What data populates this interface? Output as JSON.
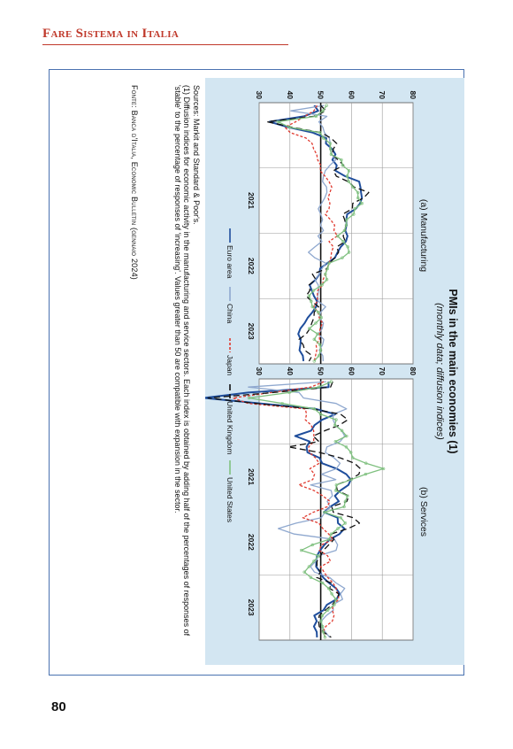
{
  "header": {
    "title": "Fare Sistema in Italia"
  },
  "page_number": "80",
  "figure": {
    "sources": "Sources: Markit and Standard & Poor's.",
    "note_line1": "(1) Diffusion indices for economic activity in the manufacturing and service sectors. Each index is obtained by adding half of the percentages of responses of",
    "note_line2": "'stable' to the percentage of responses of 'increasing'. Values greater than 50 are compatible with expansion in the sector.",
    "source": "Fonte: Banca d'Italia, Economic Bulletin (gennaio 2024)"
  },
  "chart_data": {
    "type": "line",
    "title": "PMIs in the main economies (1)",
    "subtitle": "(monthly data; diffusion indices)",
    "ylim": [
      30,
      80
    ],
    "yticks": [
      30,
      40,
      50,
      60,
      70,
      80
    ],
    "xlim": [
      "2020-01",
      "2024-01"
    ],
    "xticks": [
      "2021",
      "2022",
      "2023"
    ],
    "grid": true,
    "reference_line": 50,
    "legend_position": "bottom",
    "series_styles": [
      {
        "name": "Euro area",
        "color": "#1f4e9c",
        "dash": ""
      },
      {
        "name": "China",
        "color": "#8fa8cf",
        "dash": ""
      },
      {
        "name": "Japan",
        "color": "#e03a2f",
        "dash": "3,2"
      },
      {
        "name": "United Kingdom",
        "color": "#111111",
        "dash": "7,4"
      },
      {
        "name": "United States",
        "color": "#7fc07f",
        "dash": ""
      }
    ],
    "panels": [
      {
        "title": "(a) Manufacturing",
        "series": [
          {
            "name": "Euro area",
            "values": [
              47.9,
              49.2,
              44.5,
              33.4,
              39.4,
              47.4,
              51.8,
              51.7,
              53.7,
              54.8,
              53.8,
              55.2,
              54.8,
              57.9,
              62.5,
              62.9,
              63.1,
              63.4,
              62.8,
              61.4,
              58.6,
              58.3,
              58.4,
              58.0,
              58.7,
              58.2,
              56.5,
              55.5,
              54.6,
              52.1,
              49.8,
              49.6,
              48.4,
              46.4,
              47.1,
              47.8,
              48.8,
              48.5,
              47.3,
              45.8,
              44.8,
              43.4,
              42.7,
              43.5,
              43.4,
              43.1,
              44.2,
              44.4
            ]
          },
          {
            "name": "China",
            "values": [
              51.1,
              40.3,
              52.0,
              49.4,
              50.7,
              51.2,
              52.8,
              53.1,
              53.0,
              53.6,
              54.9,
              53.0,
              51.5,
              50.9,
              50.6,
              51.9,
              52.0,
              51.3,
              50.3,
              49.2,
              50.0,
              50.6,
              49.9,
              50.9,
              49.1,
              50.4,
              48.1,
              46.0,
              48.1,
              51.7,
              50.4,
              49.5,
              48.1,
              49.2,
              49.4,
              49.0,
              49.2,
              51.6,
              50.0,
              49.5,
              50.9,
              50.5,
              49.2,
              51.0,
              50.6,
              49.5,
              50.7,
              50.8
            ]
          },
          {
            "name": "Japan",
            "values": [
              48.8,
              47.8,
              44.8,
              41.9,
              38.4,
              40.1,
              45.2,
              47.2,
              47.7,
              48.7,
              49.0,
              50.0,
              49.8,
              51.4,
              52.7,
              53.6,
              53.0,
              52.4,
              53.0,
              52.7,
              51.5,
              53.2,
              54.5,
              54.3,
              55.4,
              52.7,
              54.1,
              53.5,
              53.3,
              52.7,
              52.1,
              51.5,
              50.8,
              50.7,
              49.0,
              48.9,
              48.9,
              47.7,
              49.2,
              49.5,
              50.6,
              49.8,
              49.6,
              49.6,
              48.5,
              48.7,
              48.3,
              47.9
            ]
          },
          {
            "name": "United Kingdom",
            "values": [
              50.0,
              51.7,
              47.8,
              32.6,
              40.7,
              50.1,
              53.3,
              55.2,
              54.1,
              53.7,
              55.6,
              57.5,
              54.1,
              55.1,
              58.9,
              60.9,
              65.6,
              63.9,
              60.4,
              60.3,
              57.1,
              57.8,
              58.1,
              57.9,
              57.3,
              58.0,
              55.2,
              55.8,
              54.6,
              52.8,
              52.1,
              47.3,
              48.4,
              46.2,
              46.5,
              45.3,
              47.0,
              49.3,
              47.9,
              47.8,
              47.1,
              46.5,
              45.3,
              43.0,
              44.3,
              44.8,
              47.2,
              46.2
            ]
          },
          {
            "name": "United States",
            "values": [
              51.9,
              50.7,
              48.5,
              36.1,
              39.8,
              49.8,
              50.9,
              53.1,
              53.2,
              53.4,
              56.7,
              57.1,
              59.2,
              58.6,
              59.1,
              60.5,
              62.1,
              62.1,
              63.4,
              61.1,
              60.7,
              58.4,
              58.3,
              57.7,
              55.5,
              57.3,
              58.8,
              59.2,
              57.0,
              52.7,
              52.2,
              51.5,
              52.0,
              50.4,
              47.7,
              46.2,
              46.9,
              47.3,
              49.2,
              50.2,
              48.4,
              46.3,
              49.0,
              47.9,
              49.8,
              50.0,
              49.4,
              47.9
            ]
          }
        ]
      },
      {
        "title": "(b) Services",
        "series": [
          {
            "name": "Euro area",
            "values": [
              52.5,
              52.6,
              26.4,
              12.0,
              30.5,
              48.3,
              54.7,
              50.5,
              48.0,
              46.9,
              41.7,
              46.4,
              45.4,
              45.7,
              49.6,
              50.5,
              55.2,
              58.3,
              59.8,
              59.0,
              56.4,
              54.6,
              55.9,
              53.1,
              51.1,
              55.5,
              55.6,
              57.7,
              56.1,
              53.0,
              51.2,
              49.8,
              48.8,
              48.6,
              48.5,
              49.8,
              50.8,
              52.7,
              55.0,
              56.2,
              55.1,
              52.0,
              50.9,
              47.9,
              48.7,
              47.8,
              48.7,
              48.8
            ]
          },
          {
            "name": "China",
            "values": [
              51.8,
              26.5,
              43.0,
              44.4,
              55.0,
              58.4,
              54.1,
              54.0,
              54.8,
              56.8,
              57.8,
              56.3,
              52.0,
              51.5,
              54.3,
              56.3,
              55.1,
              50.3,
              54.9,
              46.7,
              53.4,
              53.8,
              52.1,
              53.1,
              51.4,
              50.2,
              42.0,
              36.2,
              41.4,
              54.5,
              55.5,
              55.0,
              49.3,
              48.4,
              46.7,
              48.0,
              52.9,
              55.0,
              57.8,
              56.4,
              57.1,
              53.9,
              54.1,
              51.8,
              50.2,
              50.4,
              51.5,
              52.9
            ]
          },
          {
            "name": "Japan",
            "values": [
              51.0,
              46.8,
              33.8,
              21.5,
              26.5,
              45.0,
              45.4,
              45.0,
              46.9,
              47.7,
              47.8,
              47.7,
              46.1,
              46.3,
              48.3,
              49.5,
              46.5,
              48.0,
              47.4,
              42.9,
              47.8,
              50.7,
              53.0,
              52.1,
              47.6,
              44.2,
              49.4,
              50.7,
              52.6,
              54.0,
              50.3,
              49.5,
              52.2,
              53.2,
              50.0,
              51.1,
              52.3,
              54.0,
              55.0,
              55.6,
              55.9,
              54.0,
              53.8,
              54.3,
              53.8,
              51.6,
              50.8,
              51.5
            ]
          },
          {
            "name": "United Kingdom",
            "values": [
              53.9,
              53.2,
              34.5,
              13.4,
              29.0,
              47.1,
              56.5,
              58.8,
              56.1,
              51.4,
              47.6,
              49.4,
              39.5,
              49.5,
              56.3,
              61.0,
              62.9,
              62.4,
              59.6,
              55.0,
              55.4,
              59.1,
              58.5,
              53.6,
              54.1,
              60.5,
              62.6,
              58.9,
              53.4,
              54.3,
              52.6,
              50.9,
              50.0,
              48.8,
              48.8,
              49.9,
              48.7,
              53.5,
              52.9,
              55.9,
              55.2,
              53.7,
              51.5,
              49.5,
              49.3,
              49.5,
              50.9,
              53.4
            ]
          },
          {
            "name": "United States",
            "values": [
              53.4,
              49.4,
              39.8,
              26.7,
              37.5,
              47.9,
              50.0,
              55.0,
              54.6,
              56.9,
              58.4,
              54.8,
              58.3,
              59.8,
              60.4,
              64.7,
              70.4,
              64.6,
              59.9,
              55.1,
              54.9,
              58.7,
              58.0,
              57.6,
              51.2,
              56.5,
              58.0,
              55.6,
              53.4,
              52.7,
              47.3,
              43.7,
              49.3,
              47.8,
              46.2,
              44.7,
              46.8,
              50.6,
              52.6,
              53.6,
              54.9,
              54.4,
              52.3,
              50.5,
              50.1,
              50.6,
              50.8,
              51.4
            ]
          }
        ]
      }
    ]
  }
}
